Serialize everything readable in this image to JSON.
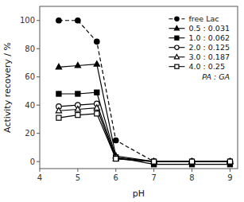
{
  "chart_data": {
    "type": "line",
    "x_label": "pH",
    "y_label": "Activity recovery / %",
    "x": [
      4.5,
      5.0,
      5.5,
      6.0,
      7.0,
      8.0,
      9.0
    ],
    "xlim": [
      4.0,
      9.2
    ],
    "ylim": [
      -5,
      110
    ],
    "xticks": [
      4,
      5,
      6,
      7,
      8,
      9
    ],
    "yticks": [
      0,
      20,
      40,
      60,
      80,
      100
    ],
    "grid": false,
    "legend": "upper right",
    "annotations": [
      "PA : GA"
    ],
    "series": [
      {
        "name": "free Lac",
        "color": "black",
        "marker": "circle",
        "line_style": "dashed",
        "values": [
          100,
          100,
          85,
          15,
          0,
          0,
          0
        ]
      },
      {
        "name": "0.5 : 0.031",
        "color": "black",
        "marker": "triangle",
        "line_style": "solid",
        "values": [
          67,
          68,
          69,
          4,
          0,
          0,
          0
        ]
      },
      {
        "name": "1.0 : 0.062",
        "color": "black",
        "marker": "square",
        "line_style": "solid",
        "values": [
          48,
          48,
          49,
          3,
          -2,
          -2,
          -2
        ]
      },
      {
        "name": "2.0 : 0.125",
        "color": "black",
        "marker": "open-circle",
        "line_style": "solid",
        "values": [
          39,
          40,
          41,
          3,
          0,
          0,
          0
        ]
      },
      {
        "name": "3.0 : 0.187",
        "color": "black",
        "marker": "open-triangle",
        "line_style": "solid",
        "values": [
          36,
          37,
          38,
          2,
          0,
          0,
          0
        ]
      },
      {
        "name": "4.0 : 0.25",
        "color": "black",
        "marker": "open-square",
        "line_style": "solid",
        "values": [
          31,
          33,
          34,
          2,
          0,
          0,
          0
        ]
      }
    ]
  }
}
